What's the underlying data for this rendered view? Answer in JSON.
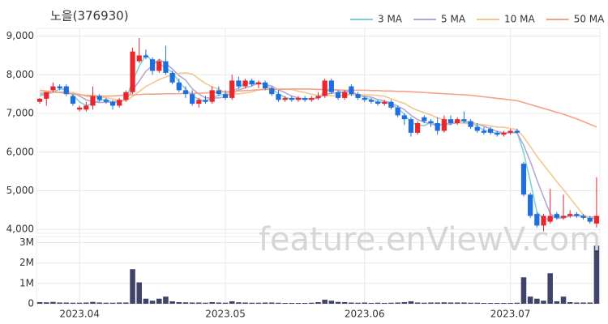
{
  "chart_data": {
    "type": "candlestick",
    "title": "노을(376930)",
    "watermark": "feature.enViewV.com",
    "categories": [
      null,
      null,
      null,
      null,
      null,
      null,
      "2023.04",
      null,
      null,
      null,
      null,
      null,
      null,
      null,
      null,
      null,
      null,
      null,
      null,
      null,
      null,
      null,
      null,
      null,
      null,
      null,
      null,
      null,
      "2023.05",
      null,
      null,
      null,
      null,
      null,
      null,
      null,
      null,
      null,
      null,
      null,
      null,
      null,
      null,
      null,
      null,
      null,
      null,
      null,
      null,
      "2023.06",
      null,
      null,
      null,
      null,
      null,
      null,
      null,
      null,
      null,
      null,
      null,
      null,
      null,
      null,
      null,
      null,
      null,
      null,
      null,
      null,
      null,
      "2023.07",
      null,
      null,
      null,
      null,
      null,
      null,
      null,
      null,
      null,
      null,
      null,
      null,
      null
    ],
    "open": [
      7300,
      7380,
      7600,
      7700,
      7700,
      7450,
      7100,
      7100,
      7200,
      7450,
      7350,
      7300,
      7200,
      7350,
      7550,
      8350,
      8500,
      8400,
      8100,
      8350,
      8050,
      7800,
      7600,
      7500,
      7250,
      7350,
      7300,
      7600,
      7500,
      7400,
      7850,
      7700,
      7850,
      7750,
      7800,
      7650,
      7500,
      7350,
      7400,
      7350,
      7400,
      7350,
      7400,
      7450,
      7850,
      7550,
      7400,
      7700,
      7500,
      7400,
      7350,
      7300,
      7250,
      7300,
      7150,
      6950,
      6850,
      6500,
      6900,
      6800,
      6750,
      6550,
      6850,
      6750,
      6850,
      6800,
      6650,
      6550,
      6600,
      6500,
      6450,
      6500,
      6550,
      5700,
      4900,
      4400,
      4100,
      4200,
      4400,
      4300,
      4350,
      4400,
      4350,
      4300,
      4150
    ],
    "high": [
      7400,
      7500,
      7800,
      7750,
      7750,
      7500,
      7200,
      7300,
      7700,
      7500,
      7400,
      7350,
      7400,
      7600,
      8700,
      8950,
      8650,
      8450,
      8400,
      8750,
      8100,
      7900,
      7700,
      7600,
      7400,
      7450,
      7700,
      7700,
      7600,
      8000,
      7950,
      7900,
      7900,
      7850,
      7850,
      7700,
      7600,
      7450,
      7450,
      7450,
      7450,
      7450,
      7550,
      7900,
      7900,
      7600,
      7600,
      7750,
      7550,
      7450,
      7400,
      7350,
      7350,
      7350,
      7200,
      7000,
      6900,
      6800,
      6950,
      6850,
      6900,
      6950,
      6950,
      6900,
      7050,
      6850,
      6750,
      6650,
      6650,
      6550,
      6550,
      6600,
      6600,
      5750,
      4950,
      4450,
      4400,
      5050,
      4450,
      4900,
      4500,
      4450,
      4400,
      4350,
      5350
    ],
    "low": [
      7250,
      7200,
      7550,
      7600,
      7450,
      7200,
      7050,
      7050,
      7100,
      7300,
      7250,
      7100,
      7150,
      7300,
      7500,
      8300,
      8400,
      8000,
      8050,
      8000,
      7750,
      7550,
      7400,
      7200,
      7150,
      7250,
      7250,
      7450,
      7350,
      7350,
      7650,
      7650,
      7700,
      7650,
      7600,
      7450,
      7300,
      7300,
      7300,
      7300,
      7300,
      7300,
      7350,
      7400,
      7500,
      7350,
      7350,
      7450,
      7350,
      7300,
      7250,
      7200,
      7200,
      7100,
      6900,
      6700,
      6400,
      6450,
      6750,
      6650,
      6450,
      6500,
      6700,
      6700,
      6750,
      6600,
      6500,
      6450,
      6450,
      6400,
      6400,
      6450,
      6480,
      4850,
      4300,
      4050,
      3950,
      4150,
      4250,
      4250,
      4300,
      4300,
      4250,
      4150,
      4050
    ],
    "close": [
      7380,
      7550,
      7700,
      7650,
      7500,
      7250,
      7150,
      7200,
      7450,
      7350,
      7300,
      7200,
      7350,
      7550,
      8600,
      8500,
      8450,
      8100,
      8350,
      8050,
      7800,
      7600,
      7500,
      7250,
      7350,
      7300,
      7600,
      7500,
      7400,
      7850,
      7700,
      7850,
      7750,
      7800,
      7650,
      7500,
      7350,
      7400,
      7350,
      7400,
      7350,
      7400,
      7450,
      7850,
      7550,
      7400,
      7550,
      7500,
      7400,
      7350,
      7300,
      7250,
      7300,
      7150,
      6950,
      6850,
      6500,
      6750,
      6800,
      6750,
      6550,
      6850,
      6750,
      6850,
      6800,
      6650,
      6550,
      6500,
      6500,
      6450,
      6500,
      6550,
      6500,
      4900,
      4350,
      4100,
      4350,
      4350,
      4300,
      4350,
      4400,
      4350,
      4300,
      4200,
      4350
    ],
    "volume": [
      80000,
      70000,
      90000,
      60000,
      60000,
      50000,
      50000,
      60000,
      90000,
      60000,
      50000,
      50000,
      60000,
      60000,
      1700000,
      1050000,
      250000,
      150000,
      250000,
      350000,
      120000,
      80000,
      70000,
      60000,
      60000,
      50000,
      80000,
      60000,
      50000,
      120000,
      70000,
      60000,
      50000,
      50000,
      60000,
      60000,
      50000,
      40000,
      40000,
      40000,
      40000,
      50000,
      80000,
      200000,
      150000,
      90000,
      80000,
      60000,
      50000,
      60000,
      40000,
      50000,
      40000,
      50000,
      60000,
      80000,
      120000,
      60000,
      50000,
      60000,
      60000,
      70000,
      60000,
      60000,
      60000,
      50000,
      50000,
      40000,
      40000,
      40000,
      40000,
      40000,
      50000,
      1300000,
      350000,
      250000,
      150000,
      1500000,
      120000,
      350000,
      80000,
      60000,
      60000,
      60000,
      2850000
    ],
    "series": [
      {
        "name": "3 MA",
        "color": "#7fd3d0",
        "values": [
          7450,
          7500,
          7543,
          7633,
          7617,
          7467,
          7300,
          7200,
          7267,
          7333,
          7367,
          7283,
          7283,
          7367,
          7833,
          8217,
          8517,
          8350,
          8300,
          8167,
          8067,
          7817,
          7633,
          7450,
          7367,
          7300,
          7417,
          7467,
          7500,
          7583,
          7650,
          7800,
          7767,
          7800,
          7733,
          7650,
          7500,
          7417,
          7367,
          7383,
          7367,
          7383,
          7400,
          7567,
          7617,
          7600,
          7500,
          7483,
          7483,
          7417,
          7350,
          7300,
          7283,
          7233,
          7133,
          6983,
          6767,
          6700,
          6683,
          6767,
          6700,
          6717,
          6717,
          6817,
          6800,
          6767,
          6667,
          6567,
          6517,
          6483,
          6483,
          6500,
          6517,
          5983,
          5250,
          4450,
          4267,
          4267,
          4333,
          4333,
          4350,
          4367,
          4350,
          4283,
          4283
        ]
      },
      {
        "name": "5 MA",
        "color": "#b4a7d6",
        "values": [
          7500,
          7520,
          7540,
          7550,
          7556,
          7530,
          7450,
          7350,
          7310,
          7280,
          7290,
          7300,
          7330,
          7350,
          7600,
          7840,
          8090,
          8240,
          8400,
          8290,
          8150,
          7980,
          7860,
          7640,
          7500,
          7400,
          7400,
          7400,
          7430,
          7530,
          7610,
          7660,
          7710,
          7790,
          7750,
          7710,
          7610,
          7540,
          7450,
          7400,
          7370,
          7380,
          7390,
          7490,
          7520,
          7530,
          7570,
          7570,
          7480,
          7440,
          7420,
          7360,
          7320,
          7270,
          7190,
          7100,
          6950,
          6840,
          6770,
          6730,
          6670,
          6740,
          6740,
          6750,
          6760,
          6780,
          6720,
          6670,
          6600,
          6530,
          6500,
          6500,
          6500,
          6180,
          5760,
          5280,
          4840,
          4410,
          4290,
          4290,
          4350,
          4350,
          4340,
          4320,
          4320
        ]
      },
      {
        "name": "10 MA",
        "color": "#f0c890",
        "values": [
          7550,
          7550,
          7550,
          7540,
          7530,
          7540,
          7495,
          7440,
          7430,
          7418,
          7410,
          7375,
          7340,
          7330,
          7440,
          7565,
          7695,
          7785,
          7875,
          7945,
          7995,
          8035,
          8050,
          8020,
          7895,
          7775,
          7690,
          7630,
          7535,
          7515,
          7505,
          7530,
          7555,
          7610,
          7640,
          7660,
          7635,
          7625,
          7620,
          7575,
          7540,
          7495,
          7465,
          7470,
          7460,
          7450,
          7475,
          7480,
          7485,
          7480,
          7475,
          7465,
          7445,
          7375,
          7315,
          7260,
          7155,
          7080,
          7020,
          6960,
          6885,
          6845,
          6790,
          6760,
          6745,
          6725,
          6730,
          6705,
          6675,
          6645,
          6640,
          6610,
          6585,
          6390,
          6145,
          5890,
          5670,
          5455,
          5235,
          5025,
          4815,
          4595,
          4375,
          4305,
          4305
        ]
      },
      {
        "name": "50 MA",
        "color": "#f4a38a",
        "values": [
          7600,
          7580,
          7560,
          7540,
          7520,
          7500,
          7480,
          7470,
          7460,
          7450,
          7450,
          7450,
          7460,
          7470,
          7480,
          7490,
          7500,
          7500,
          7500,
          7510,
          7510,
          7510,
          7520,
          7520,
          7520,
          7530,
          7540,
          7550,
          7560,
          7570,
          7580,
          7590,
          7600,
          7610,
          7620,
          7620,
          7620,
          7630,
          7630,
          7630,
          7630,
          7630,
          7620,
          7620,
          7610,
          7610,
          7600,
          7600,
          7600,
          7600,
          7590,
          7590,
          7580,
          7580,
          7570,
          7570,
          7560,
          7550,
          7540,
          7530,
          7520,
          7510,
          7500,
          7490,
          7480,
          7470,
          7450,
          7430,
          7410,
          7390,
          7370,
          7350,
          7330,
          7280,
          7230,
          7180,
          7130,
          7080,
          7030,
          6980,
          6920,
          6860,
          6790,
          6720,
          6650
        ]
      }
    ],
    "up_color": "#e8262b",
    "down_color": "#1f6ee0",
    "volume_color": "#3f4468",
    "ylim": [
      3900,
      9200
    ],
    "yticks": [
      {
        "value": 4000,
        "label": "4,000"
      },
      {
        "value": 5000,
        "label": "5,000"
      },
      {
        "value": 6000,
        "label": "6,000"
      },
      {
        "value": 7000,
        "label": "7,000"
      },
      {
        "value": 8000,
        "label": "8,000"
      },
      {
        "value": 9000,
        "label": "9,000"
      }
    ],
    "volume_ylim": [
      0,
      3300000
    ],
    "volume_yticks": [
      0,
      {
        "value": 1000000,
        "label": "1M"
      },
      {
        "value": 2000000,
        "label": "2M"
      },
      {
        "value": 3000000,
        "label": "3M"
      }
    ],
    "grid": true
  }
}
